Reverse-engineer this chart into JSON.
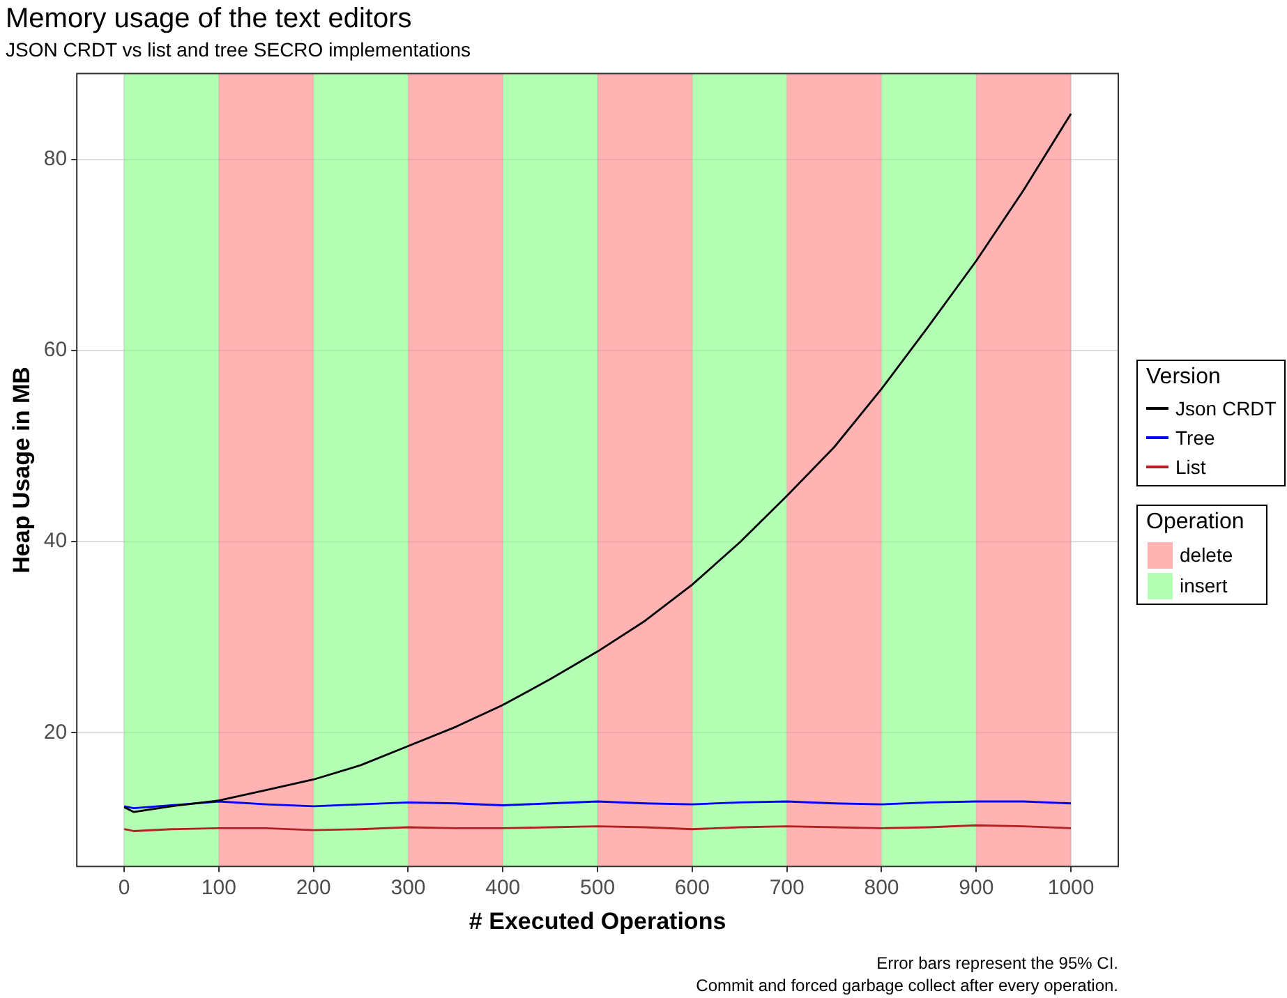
{
  "chart_data": {
    "type": "line",
    "title": "Memory usage of the text editors",
    "subtitle": "JSON CRDT vs list and tree SECRO implementations",
    "xlabel": "# Executed Operations",
    "ylabel": "Heap Usage in MB",
    "legend_title": "Version",
    "x": [
      0,
      10,
      50,
      100,
      150,
      200,
      250,
      300,
      350,
      400,
      450,
      500,
      550,
      600,
      650,
      700,
      750,
      800,
      850,
      900,
      950,
      1000
    ],
    "series": [
      {
        "name": "Json CRDT",
        "color": "#000000",
        "values": [
          12.2,
          11.7,
          12.3,
          12.9,
          14.0,
          15.1,
          16.6,
          18.6,
          20.6,
          22.9,
          25.6,
          28.5,
          31.7,
          35.5,
          39.9,
          44.8,
          49.9,
          56.0,
          62.6,
          69.4,
          76.8,
          84.8
        ]
      },
      {
        "name": "Tree",
        "color": "#0000ff",
        "values": [
          12.3,
          12.1,
          12.4,
          12.8,
          12.5,
          12.3,
          12.5,
          12.7,
          12.6,
          12.4,
          12.6,
          12.8,
          12.6,
          12.5,
          12.7,
          12.8,
          12.6,
          12.5,
          12.7,
          12.8,
          12.8,
          12.6
        ]
      },
      {
        "name": "List",
        "color": "#b22222",
        "values": [
          9.9,
          9.7,
          9.9,
          10.0,
          10.0,
          9.8,
          9.9,
          10.1,
          10.0,
          10.0,
          10.1,
          10.2,
          10.1,
          9.9,
          10.1,
          10.2,
          10.1,
          10.0,
          10.1,
          10.3,
          10.2,
          10.0
        ]
      }
    ],
    "xlim": [
      -50,
      1050
    ],
    "xticks": [
      0,
      100,
      200,
      300,
      400,
      500,
      600,
      700,
      800,
      900,
      1000
    ],
    "ylim": [
      6,
      89
    ],
    "yticks": [
      20,
      40,
      60,
      80
    ],
    "bands": [
      {
        "axis": "x",
        "from": 0,
        "to": 100,
        "color": "#b3ffb3"
      },
      {
        "axis": "x",
        "from": 100,
        "to": 200,
        "color": "#ffb3b3"
      },
      {
        "axis": "x",
        "from": 200,
        "to": 300,
        "color": "#b3ffb3"
      },
      {
        "axis": "x",
        "from": 300,
        "to": 400,
        "color": "#ffb3b3"
      },
      {
        "axis": "x",
        "from": 400,
        "to": 500,
        "color": "#b3ffb3"
      },
      {
        "axis": "x",
        "from": 500,
        "to": 600,
        "color": "#ffb3b3"
      },
      {
        "axis": "x",
        "from": 600,
        "to": 700,
        "color": "#b3ffb3"
      },
      {
        "axis": "x",
        "from": 700,
        "to": 800,
        "color": "#ffb3b3"
      },
      {
        "axis": "x",
        "from": 800,
        "to": 900,
        "color": "#b3ffb3"
      },
      {
        "axis": "x",
        "from": 900,
        "to": 1000,
        "color": "#ffb3b3"
      }
    ],
    "annotations": [
      "Operation",
      "delete",
      "insert",
      "Error bars represent the 95% CI.",
      "Commit and forced garbage collect after every operation."
    ],
    "grid": true,
    "legend": "right",
    "marker": "none",
    "line_style": "solid"
  }
}
